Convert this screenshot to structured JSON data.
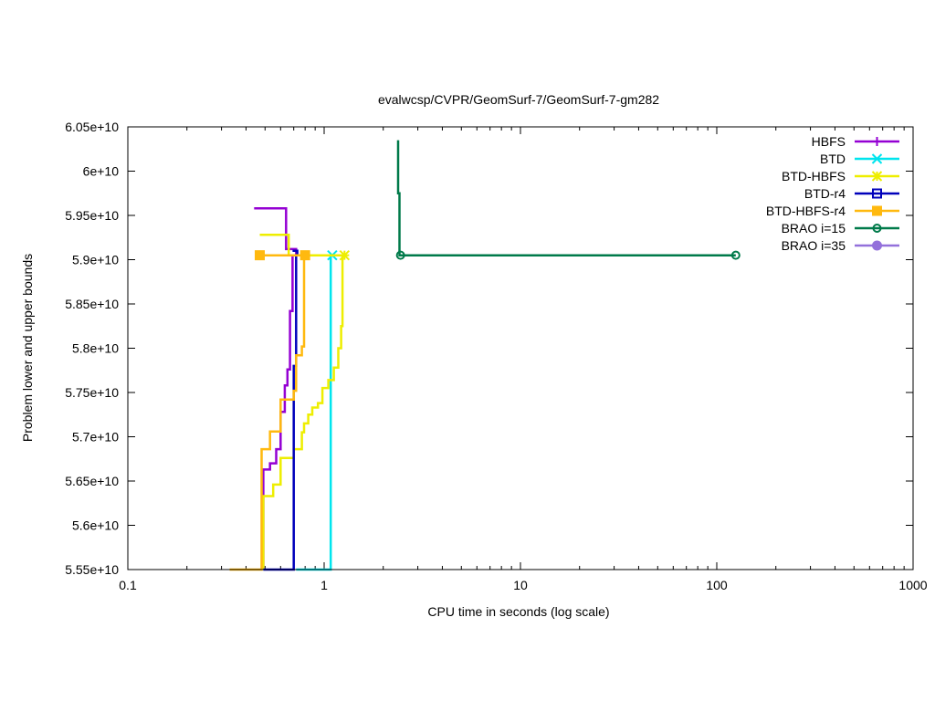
{
  "chart_data": {
    "type": "line",
    "title": "evalwcsp/CVPR/GeomSurf-7/GeomSurf-7-gm282",
    "xlabel": "CPU time in seconds (log scale)",
    "ylabel": "Problem lower and upper bounds",
    "x_scale": "log",
    "xlim": [
      0.1,
      1000
    ],
    "ylim": [
      55500000000,
      60500000000
    ],
    "x_ticks": [
      {
        "value": 0.1,
        "label": "0.1"
      },
      {
        "value": 1,
        "label": "1"
      },
      {
        "value": 10,
        "label": "10"
      },
      {
        "value": 100,
        "label": "100"
      },
      {
        "value": 1000,
        "label": "1000"
      }
    ],
    "y_ticks": [
      {
        "value": 55500000000,
        "label": "5.55e+10"
      },
      {
        "value": 56000000000,
        "label": "5.6e+10"
      },
      {
        "value": 56500000000,
        "label": "5.65e+10"
      },
      {
        "value": 57000000000,
        "label": "5.7e+10"
      },
      {
        "value": 57500000000,
        "label": "5.75e+10"
      },
      {
        "value": 58000000000,
        "label": "5.8e+10"
      },
      {
        "value": 58500000000,
        "label": "5.85e+10"
      },
      {
        "value": 59000000000,
        "label": "5.9e+10"
      },
      {
        "value": 59500000000,
        "label": "5.95e+10"
      },
      {
        "value": 60000000000,
        "label": "6e+10"
      },
      {
        "value": 60500000000,
        "label": "6.05e+10"
      }
    ],
    "grid": false,
    "legend_position": "top-right",
    "series": [
      {
        "name": "HBFS",
        "color": "#9400d3",
        "marker": "plus",
        "upper": [
          [
            0.44,
            59580000000
          ],
          [
            0.64,
            59580000000
          ],
          [
            0.64,
            59120000000
          ],
          [
            0.72,
            59120000000
          ],
          [
            0.72,
            59050000000
          ]
        ],
        "lower": [
          [
            0.49,
            55500000000
          ],
          [
            0.49,
            56630000000
          ],
          [
            0.53,
            56630000000
          ],
          [
            0.53,
            56700000000
          ],
          [
            0.57,
            56700000000
          ],
          [
            0.57,
            56860000000
          ],
          [
            0.6,
            56860000000
          ],
          [
            0.6,
            57280000000
          ],
          [
            0.63,
            57280000000
          ],
          [
            0.63,
            57580000000
          ],
          [
            0.65,
            57580000000
          ],
          [
            0.65,
            57760000000
          ],
          [
            0.67,
            57760000000
          ],
          [
            0.67,
            58420000000
          ],
          [
            0.69,
            58420000000
          ],
          [
            0.69,
            59050000000
          ],
          [
            0.72,
            59050000000
          ]
        ],
        "markers": []
      },
      {
        "name": "BTD",
        "color": "#00e5ee",
        "marker": "x",
        "upper": [
          [
            1.1,
            59050000000
          ]
        ],
        "lower": [
          [
            0.72,
            55500000000
          ],
          [
            1.08,
            55500000000
          ],
          [
            1.08,
            59050000000
          ],
          [
            1.1,
            59050000000
          ]
        ],
        "markers": [
          [
            1.1,
            59050000000
          ]
        ]
      },
      {
        "name": "BTD-HBFS",
        "color": "#eeee00",
        "marker": "star",
        "upper": [
          [
            0.47,
            59280000000
          ],
          [
            0.66,
            59280000000
          ],
          [
            0.66,
            59050000000
          ],
          [
            1.27,
            59050000000
          ]
        ],
        "lower": [
          [
            0.49,
            55500000000
          ],
          [
            0.49,
            56330000000
          ],
          [
            0.55,
            56330000000
          ],
          [
            0.55,
            56460000000
          ],
          [
            0.6,
            56460000000
          ],
          [
            0.6,
            56760000000
          ],
          [
            0.7,
            56760000000
          ],
          [
            0.7,
            56860000000
          ],
          [
            0.77,
            56860000000
          ],
          [
            0.77,
            57050000000
          ],
          [
            0.79,
            57050000000
          ],
          [
            0.79,
            57150000000
          ],
          [
            0.83,
            57150000000
          ],
          [
            0.83,
            57250000000
          ],
          [
            0.87,
            57250000000
          ],
          [
            0.87,
            57330000000
          ],
          [
            0.93,
            57330000000
          ],
          [
            0.93,
            57380000000
          ],
          [
            0.98,
            57380000000
          ],
          [
            0.98,
            57550000000
          ],
          [
            1.05,
            57550000000
          ],
          [
            1.05,
            57640000000
          ],
          [
            1.12,
            57640000000
          ],
          [
            1.12,
            57780000000
          ],
          [
            1.18,
            57780000000
          ],
          [
            1.18,
            58000000000
          ],
          [
            1.22,
            58000000000
          ],
          [
            1.22,
            58250000000
          ],
          [
            1.24,
            58250000000
          ],
          [
            1.24,
            59050000000
          ],
          [
            1.27,
            59050000000
          ]
        ],
        "markers": [
          [
            1.27,
            59050000000
          ]
        ]
      },
      {
        "name": "BTD-r4",
        "color": "#0000bb",
        "marker": "open-square",
        "upper": [
          [
            0.69,
            59100000000
          ],
          [
            0.73,
            59100000000
          ],
          [
            0.73,
            59050000000
          ]
        ],
        "lower": [
          [
            0.49,
            55500000000
          ],
          [
            0.7,
            55500000000
          ],
          [
            0.7,
            57800000000
          ],
          [
            0.72,
            57800000000
          ],
          [
            0.72,
            59050000000
          ],
          [
            0.73,
            59050000000
          ]
        ],
        "markers": []
      },
      {
        "name": "BTD-HBFS-r4",
        "color": "#ffb90f",
        "marker": "filled-square",
        "upper": [
          [
            0.47,
            59050000000
          ],
          [
            0.8,
            59050000000
          ]
        ],
        "lower": [
          [
            0.33,
            55500000000
          ],
          [
            0.48,
            55500000000
          ],
          [
            0.48,
            56860000000
          ],
          [
            0.53,
            56860000000
          ],
          [
            0.53,
            57060000000
          ],
          [
            0.6,
            57060000000
          ],
          [
            0.6,
            57420000000
          ],
          [
            0.7,
            57420000000
          ],
          [
            0.7,
            57520000000
          ],
          [
            0.72,
            57520000000
          ],
          [
            0.72,
            57920000000
          ],
          [
            0.77,
            57920000000
          ],
          [
            0.77,
            58020000000
          ],
          [
            0.79,
            58020000000
          ],
          [
            0.79,
            59050000000
          ],
          [
            0.8,
            59050000000
          ]
        ],
        "markers": [
          [
            0.47,
            59050000000
          ],
          [
            0.8,
            59050000000
          ]
        ]
      },
      {
        "name": "BRAO i=15",
        "color": "#007a4a",
        "marker": "open-circle",
        "upper": [
          [
            2.38,
            60350000000
          ],
          [
            2.38,
            59750000000
          ],
          [
            2.42,
            59750000000
          ],
          [
            2.42,
            59050000000
          ],
          [
            125,
            59050000000
          ]
        ],
        "lower": [],
        "markers": [
          [
            2.45,
            59050000000
          ],
          [
            125,
            59050000000
          ]
        ]
      },
      {
        "name": "BRAO i=35",
        "color": "#9370db",
        "marker": "filled-circle",
        "upper": [],
        "lower": [],
        "markers": []
      }
    ]
  }
}
